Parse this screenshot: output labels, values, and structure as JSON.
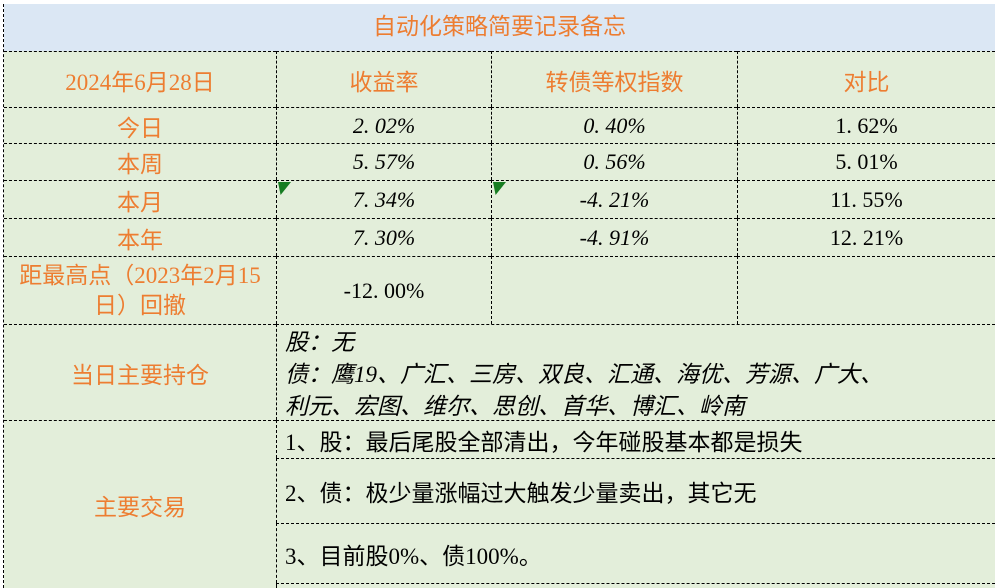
{
  "colors": {
    "title_bg": "#dbe7f4",
    "table_bg": "#e3eeda",
    "accent_text": "#ed7d31",
    "body_text": "#000000",
    "flag_green": "#177d22",
    "border": "#000000"
  },
  "title": "自动化策略简要记录备忘",
  "summary_table": {
    "columns": [
      "2024年6月28日",
      "收益率",
      "转债等权指数",
      "对比"
    ],
    "rows": [
      {
        "label": "今日",
        "yield": "2. 02%",
        "index": "0. 40%",
        "diff": "1. 62%"
      },
      {
        "label": "本周",
        "yield": "5. 57%",
        "index": "0. 56%",
        "diff": "5. 01%"
      },
      {
        "label": "本月",
        "yield": "7. 34%",
        "index": "-4. 21%",
        "diff": "11. 55%",
        "flags": [
          "yield",
          "index"
        ]
      },
      {
        "label": "本年",
        "yield": "7. 30%",
        "index": "-4. 91%",
        "diff": "12. 21%"
      }
    ],
    "drawdown": {
      "label": "距最高点（2023年2月15日）回撤",
      "value": "-12. 00%"
    }
  },
  "holdings": {
    "label": "当日主要持仓",
    "lines": [
      "股：无",
      "债：鹰19、广汇、三房、双良、汇通、海优、芳源、广大、",
      "利元、宏图、维尔、思创、首华、博汇、岭南"
    ]
  },
  "trades": {
    "label": "主要交易",
    "items": [
      "1、股：最后尾股全部清出，今年碰股基本都是损失",
      "2、债：极少量涨幅过大触发少量卖出，其它无",
      "3、目前股0%、债100%。"
    ]
  }
}
